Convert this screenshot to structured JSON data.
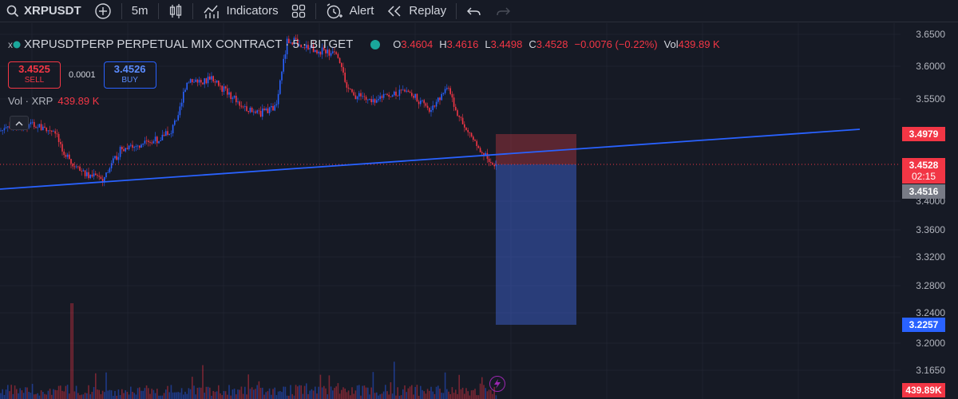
{
  "toolbar": {
    "symbol": "XRPUSDT",
    "interval": "5m",
    "indicators_label": "Indicators",
    "alert_label": "Alert",
    "replay_label": "Replay"
  },
  "legend": {
    "title": "XRPUSDTPERP PERPETUAL MIX CONTRACT · 5 · BITGET",
    "open_key": "O",
    "open": "3.4604",
    "high_key": "H",
    "high": "3.4616",
    "low_key": "L",
    "low": "3.4498",
    "close_key": "C",
    "close": "3.4528",
    "change": "−0.0076 (−0.22%)",
    "vol_key": "Vol",
    "vol": "439.89 K"
  },
  "trade": {
    "sell_price": "3.4525",
    "sell_label": "SELL",
    "spread": "0.0001",
    "buy_price": "3.4526",
    "buy_label": "BUY"
  },
  "volume_pane": {
    "label": "Vol · XRP",
    "value": "439.89 K"
  },
  "price_axis": {
    "ticks": [
      "3.6500",
      "3.6000",
      "3.5500",
      "3.4000",
      "3.3600",
      "3.3200",
      "3.2800",
      "3.2400",
      "3.2000",
      "3.1650"
    ],
    "tags": {
      "target": "3.4979",
      "last": "3.4528",
      "countdown": "02:15",
      "bid": "3.4516",
      "stop": "3.2257",
      "volume": "439.89K"
    }
  },
  "colors": {
    "background": "#161a25",
    "up": "#2962ff",
    "down": "#f23645",
    "trendline": "#2962ff",
    "profit_zone": "#3b5bbf",
    "loss_zone": "#8b2f3a"
  },
  "icons": [
    "search-icon",
    "plus-circle-icon",
    "candles-icon",
    "indicators-icon",
    "layouts-icon",
    "alert-icon",
    "replay-icon",
    "undo-icon",
    "redo-icon",
    "lightning-icon",
    "chevron-up-icon"
  ]
}
